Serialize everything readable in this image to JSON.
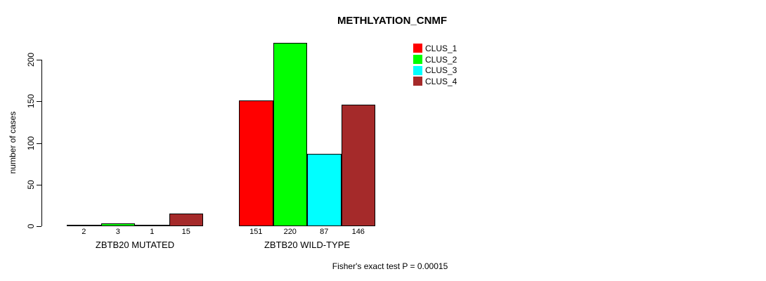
{
  "chart_data": {
    "type": "bar",
    "title": "METHLYATION_CNMF",
    "categories": [
      "ZBTB20 MUTATED",
      "ZBTB20 WILD-TYPE"
    ],
    "series": [
      {
        "name": "CLUS_1",
        "color": "#ff0000",
        "values": [
          2,
          151
        ]
      },
      {
        "name": "CLUS_2",
        "color": "#00ff00",
        "values": [
          3,
          220
        ]
      },
      {
        "name": "CLUS_3",
        "color": "#00ffff",
        "values": [
          1,
          87
        ]
      },
      {
        "name": "CLUS_4",
        "color": "#a52a2a",
        "values": [
          15,
          146
        ]
      }
    ],
    "xlabel": "",
    "ylabel": "number of cases",
    "ylim": [
      0,
      220
    ],
    "yticks": [
      0,
      50,
      100,
      150,
      200
    ],
    "grid": false,
    "bar_borders": true,
    "legend": {
      "position": "top-right",
      "entries": [
        "CLUS_1",
        "CLUS_2",
        "CLUS_3",
        "CLUS_4"
      ]
    },
    "annotation": "Fisher's exact test P = 0.00015"
  }
}
